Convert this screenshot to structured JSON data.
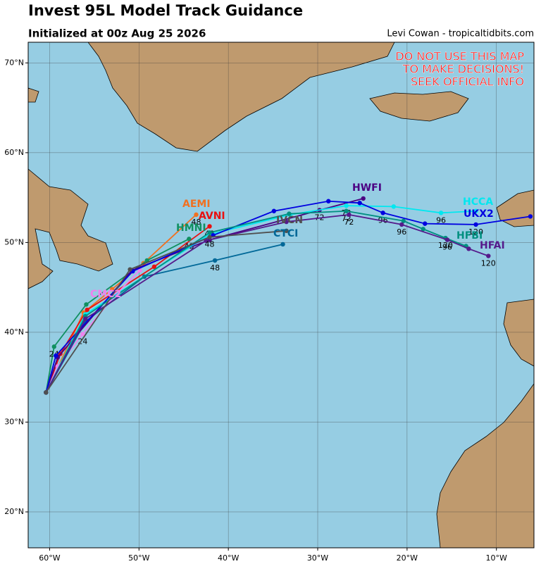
{
  "chart_data": {
    "type": "track-map",
    "title": "Invest 95L Model Track Guidance",
    "subtitle": "Initialized at 00z Aug 25 2026",
    "credit": "Levi Cowan - tropicaltidbits.com",
    "warning": [
      "DO NOT USE THIS MAP",
      "TO MAKE DECISIONS!",
      "SEEK OFFICIAL INFO"
    ],
    "xlim": [
      -62.4,
      -5.8
    ],
    "ylim": [
      16,
      72.3
    ],
    "grid": true,
    "xticks": [
      {
        "value": -60,
        "label": "60°W"
      },
      {
        "value": -50,
        "label": "50°W"
      },
      {
        "value": -40,
        "label": "40°W"
      },
      {
        "value": -30,
        "label": "30°W"
      },
      {
        "value": -20,
        "label": "20°W"
      },
      {
        "value": -10,
        "label": "10°W"
      }
    ],
    "yticks": [
      {
        "value": 20,
        "label": "20°N"
      },
      {
        "value": 30,
        "label": "30°N"
      },
      {
        "value": 40,
        "label": "40°N"
      },
      {
        "value": 50,
        "label": "50°N"
      },
      {
        "value": 60,
        "label": "60°N"
      },
      {
        "value": 70,
        "label": "70°N"
      }
    ],
    "series": [
      {
        "name": "AEMI",
        "color": "#f07020",
        "x": [
          -60.4,
          -56.2,
          -53,
          -49.5,
          -43.6
        ],
        "values": [
          33.3,
          42.2,
          44.8,
          47.7,
          53.1
        ],
        "hour_labels": [
          null,
          null,
          null,
          null,
          "48"
        ]
      },
      {
        "name": "AVNI",
        "color": "#e81010",
        "x": [
          -60.4,
          -58.8,
          -55.8,
          -48.3,
          -42.1
        ],
        "values": [
          33.3,
          37.6,
          42.5,
          47.3,
          51.8
        ],
        "hour_labels": [
          null,
          null,
          null,
          null,
          "48"
        ]
      },
      {
        "name": "HMNI",
        "color": "#109060",
        "x": [
          -60.4,
          -59.5,
          -55.9,
          -49.1,
          -44.4
        ],
        "values": [
          33.3,
          38.4,
          43.1,
          48,
          50.4
        ],
        "hour_labels": [
          null,
          "24",
          null,
          null,
          "48"
        ]
      },
      {
        "name": "CMC2",
        "color": "#ee82ee",
        "x": [
          -60.4,
          -59.1,
          -56.3,
          -52.6,
          -49.9
        ],
        "values": [
          33.3,
          36.2,
          39.8,
          44.2,
          46.9
        ],
        "hour_labels": [
          null,
          null,
          "24",
          null,
          null
        ]
      },
      {
        "name": "CTCI",
        "color": "#006898",
        "x": [
          -60.4,
          -56,
          -49.4,
          -41.5,
          -33.9
        ],
        "values": [
          33.3,
          41.2,
          46.2,
          48,
          49.8
        ],
        "hour_labels": [
          null,
          null,
          null,
          "48",
          null
        ]
      },
      {
        "name": "HWFI",
        "color": "#4b0082",
        "x": [
          -60.4,
          -59.1,
          -50.8,
          -42.1,
          -29.8,
          -24.9
        ],
        "values": [
          33.3,
          37.2,
          46.9,
          50.3,
          53.6,
          54.9
        ],
        "hour_labels": [
          null,
          null,
          null,
          null,
          "72",
          null
        ]
      },
      {
        "name": "HCCA",
        "color": "#00e8f0",
        "x": [
          -60.4,
          -56,
          -42.1,
          -33.1,
          -26.8,
          -21.5,
          -16.2,
          -12.3
        ],
        "values": [
          33.3,
          42,
          50.9,
          53.1,
          54.1,
          54,
          53.3,
          53.5
        ],
        "hour_labels": [
          null,
          null,
          null,
          null,
          "72",
          null,
          "96",
          null
        ]
      },
      {
        "name": "UKX2",
        "color": "#0000e0",
        "x": [
          -60.4,
          -59.3,
          -50.7,
          -41.7,
          -34.9,
          -28.8,
          -25.3,
          -22.7,
          -18,
          -12.3,
          -6.2
        ],
        "values": [
          33.3,
          37.4,
          46.8,
          50.8,
          53.5,
          54.6,
          54.4,
          53.3,
          52.1,
          52,
          52.9
        ],
        "hour_labels": [
          null,
          null,
          null,
          null,
          null,
          null,
          null,
          "96",
          null,
          "120",
          null
        ]
      },
      {
        "name": "HFBI",
        "color": "#009080",
        "x": [
          -60.4,
          -56,
          -42.1,
          -33.2,
          -26.8,
          -20.4,
          -18.2,
          -15.7,
          -13.4
        ],
        "values": [
          33.3,
          41.8,
          51.1,
          53.2,
          53.5,
          52.4,
          51.5,
          50.5,
          49.6
        ],
        "hour_labels": [
          null,
          null,
          null,
          null,
          "72",
          null,
          null,
          "120",
          null
        ]
      },
      {
        "name": "HFAI",
        "color": "#551a8b",
        "x": [
          -60.4,
          -56,
          -42.5,
          -33.5,
          -26.5,
          -20.6,
          -15.5,
          -13.1,
          -10.9
        ],
        "values": [
          33.3,
          41.5,
          50.2,
          52.3,
          53.1,
          52,
          50.3,
          49.3,
          48.5
        ],
        "hour_labels": [
          null,
          null,
          null,
          null,
          "72",
          "96",
          "96",
          null,
          "120"
        ]
      },
      {
        "name": "IVCN",
        "color": "#505050",
        "x": [
          -60.4,
          -51,
          -42.1,
          -33.5
        ],
        "values": [
          33.3,
          47,
          50.6,
          51.3
        ],
        "hour_labels": [
          null,
          null,
          "48",
          null
        ]
      }
    ]
  }
}
